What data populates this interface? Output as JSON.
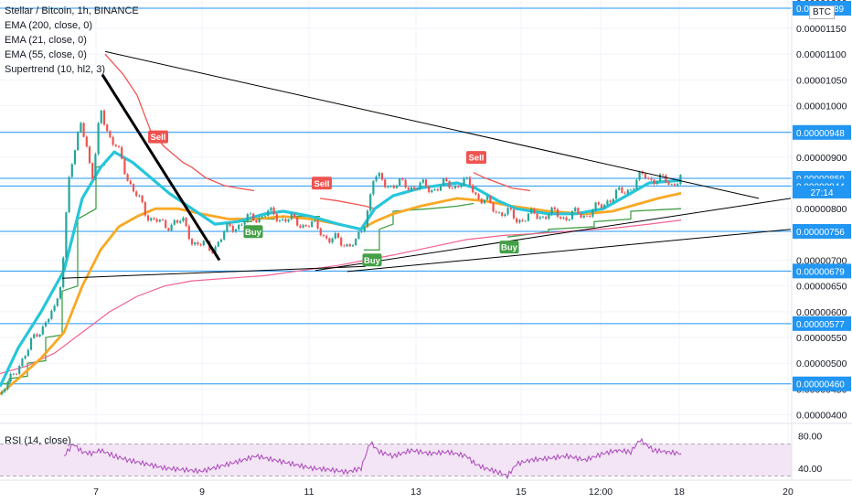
{
  "header": {
    "symbol_line": "Stellar / Bitcoin, 1h, BINANCE",
    "indicators": [
      "EMA (200, close, 0)",
      "EMA (21, close, 0)",
      "EMA (55, close, 0)",
      "Supertrend (10, hl2, 3)"
    ]
  },
  "currency_badge": "BTC",
  "rsi_label": "RSI (14, close)",
  "countdown": "27:14",
  "colors": {
    "bull": "#26a69a",
    "bear": "#ef5350",
    "ema21": "#26c6da",
    "ema55": "#f9a825",
    "ema200": "#f06292",
    "supertrend_up": "#43a047",
    "supertrend_down": "#ef5350",
    "hline": "#2196f3",
    "rsi": "#ab47bc"
  },
  "chart_data": {
    "type": "line",
    "x_ticks": [
      "7",
      "9",
      "11",
      "13",
      "15",
      "12:00",
      "18",
      "20"
    ],
    "y_ticks": [
      "0.00001200",
      "0.00001150",
      "0.00001100",
      "0.00001050",
      "0.00001000",
      "0.00000950",
      "0.00000900",
      "0.00000850",
      "0.00000800",
      "0.00000750",
      "0.00000700",
      "0.00000650",
      "0.00000600",
      "0.00000550",
      "0.00000500",
      "0.00000450",
      "0.00000400"
    ],
    "ylim": [
      3.85e-06,
      1.205e-05
    ],
    "horizontal_levels": [
      "0.00001189",
      "0.00000948",
      "0.00000859",
      "0.00000844",
      "0.00000756",
      "0.00000679",
      "0.00000577",
      "0.00000460"
    ],
    "current_price": "0.00000859",
    "series": [
      {
        "name": "EMA (21, close, 0)",
        "points": [
          [
            0,
            4.55e-06
          ],
          [
            20,
            5.3e-06
          ],
          [
            45,
            6e-06
          ],
          [
            70,
            6.8e-06
          ],
          [
            90,
            8.2e-06
          ],
          [
            110,
            8.8e-06
          ],
          [
            125,
            9.1e-06
          ],
          [
            145,
            8.9e-06
          ],
          [
            165,
            8.6e-06
          ],
          [
            185,
            8.3e-06
          ],
          [
            210,
            8e-06
          ],
          [
            235,
            7.7e-06
          ],
          [
            260,
            7.75e-06
          ],
          [
            290,
            7.9e-06
          ],
          [
            310,
            7.95e-06
          ],
          [
            340,
            7.85e-06
          ],
          [
            370,
            7.7e-06
          ],
          [
            395,
            7.6e-06
          ],
          [
            410,
            8e-06
          ],
          [
            430,
            8.25e-06
          ],
          [
            460,
            8.4e-06
          ],
          [
            500,
            8.5e-06
          ],
          [
            520,
            8.4e-06
          ],
          [
            545,
            8.15e-06
          ],
          [
            565,
            8e-06
          ],
          [
            600,
            7.9e-06
          ],
          [
            630,
            7.9e-06
          ],
          [
            660,
            8e-06
          ],
          [
            690,
            8.3e-06
          ],
          [
            710,
            8.5e-06
          ],
          [
            745,
            8.55e-06
          ]
        ]
      },
      {
        "name": "EMA (55, close, 0)",
        "points": [
          [
            0,
            4.4e-06
          ],
          [
            20,
            4.7e-06
          ],
          [
            45,
            5.1e-06
          ],
          [
            70,
            5.6e-06
          ],
          [
            90,
            6.5e-06
          ],
          [
            110,
            7.2e-06
          ],
          [
            130,
            7.65e-06
          ],
          [
            150,
            7.85e-06
          ],
          [
            170,
            8e-06
          ],
          [
            195,
            8e-06
          ],
          [
            220,
            7.9e-06
          ],
          [
            250,
            7.8e-06
          ],
          [
            280,
            7.8e-06
          ],
          [
            310,
            7.85e-06
          ],
          [
            340,
            7.8e-06
          ],
          [
            370,
            7.7e-06
          ],
          [
            395,
            7.6e-06
          ],
          [
            410,
            7.75e-06
          ],
          [
            430,
            7.9e-06
          ],
          [
            460,
            8.05e-06
          ],
          [
            500,
            8.2e-06
          ],
          [
            530,
            8.15e-06
          ],
          [
            560,
            8.05e-06
          ],
          [
            600,
            7.95e-06
          ],
          [
            640,
            7.9e-06
          ],
          [
            670,
            7.95e-06
          ],
          [
            700,
            8.1e-06
          ],
          [
            720,
            8.2e-06
          ],
          [
            745,
            8.3e-06
          ]
        ]
      },
      {
        "name": "EMA (200, close, 0)",
        "points": [
          [
            0,
            4.8e-06
          ],
          [
            30,
            4.95e-06
          ],
          [
            60,
            5.2e-06
          ],
          [
            90,
            5.6e-06
          ],
          [
            120,
            6e-06
          ],
          [
            150,
            6.3e-06
          ],
          [
            180,
            6.5e-06
          ],
          [
            210,
            6.6e-06
          ],
          [
            250,
            6.65e-06
          ],
          [
            290,
            6.7e-06
          ],
          [
            330,
            6.8e-06
          ],
          [
            370,
            6.9e-06
          ],
          [
            400,
            7e-06
          ],
          [
            430,
            7.1e-06
          ],
          [
            470,
            7.25e-06
          ],
          [
            510,
            7.4e-06
          ],
          [
            550,
            7.48e-06
          ],
          [
            590,
            7.52e-06
          ],
          [
            630,
            7.57e-06
          ],
          [
            670,
            7.62e-06
          ],
          [
            710,
            7.7e-06
          ],
          [
            745,
            7.78e-06
          ]
        ]
      },
      {
        "name": "Supertrend (10, hl2, 3)",
        "segments": [
          {
            "dir": "up",
            "points": [
              [
                0,
                4.6e-06
              ],
              [
                10,
                4.6e-06
              ],
              [
                10,
                4.7e-06
              ],
              [
                30,
                4.75e-06
              ],
              [
                30,
                5e-06
              ],
              [
                50,
                5.05e-06
              ],
              [
                50,
                5.5e-06
              ],
              [
                68,
                5.55e-06
              ],
              [
                68,
                6.4e-06
              ],
              [
                85,
                6.5e-06
              ],
              [
                85,
                7.8e-06
              ],
              [
                105,
                8e-06
              ],
              [
                105,
                8.8e-06
              ],
              [
                115,
                8.85e-06
              ]
            ]
          },
          {
            "dir": "down",
            "points": [
              [
                115,
                1.1e-05
              ],
              [
                135,
                1.06e-05
              ],
              [
                150,
                1.02e-05
              ],
              [
                165,
                9.5e-06
              ],
              [
                180,
                9.2e-06
              ],
              [
                200,
                8.9e-06
              ],
              [
                210,
                8.8e-06
              ],
              [
                225,
                8.6e-06
              ],
              [
                245,
                8.45e-06
              ],
              [
                260,
                8.4e-06
              ],
              [
                278,
                8.35e-06
              ]
            ]
          },
          {
            "dir": "up",
            "points": [
              [
                255,
                7.75e-06
              ],
              [
                275,
                7.75e-06
              ],
              [
                275,
                7.8e-06
              ],
              [
                300,
                7.8e-06
              ],
              [
                300,
                7.85e-06
              ],
              [
                340,
                7.85e-06
              ],
              [
                350,
                7.85e-06
              ]
            ]
          },
          {
            "dir": "down",
            "points": [
              [
                350,
                8.2e-06
              ],
              [
                370,
                8.15e-06
              ],
              [
                385,
                8.1e-06
              ],
              [
                400,
                8.05e-06
              ],
              [
                410,
                8e-06
              ]
            ]
          },
          {
            "dir": "up",
            "points": [
              [
                398,
                7.2e-06
              ],
              [
                415,
                7.2e-06
              ],
              [
                415,
                7.6e-06
              ],
              [
                430,
                7.7e-06
              ],
              [
                430,
                7.95e-06
              ],
              [
                470,
                8e-06
              ],
              [
                500,
                8.05e-06
              ],
              [
                518,
                8.1e-06
              ]
            ]
          },
          {
            "dir": "down",
            "points": [
              [
                518,
                8.7e-06
              ],
              [
                530,
                8.6e-06
              ],
              [
                545,
                8.5e-06
              ],
              [
                560,
                8.4e-06
              ],
              [
                580,
                8.35e-06
              ]
            ]
          },
          {
            "dir": "up",
            "points": [
              [
                555,
                7.45e-06
              ],
              [
                600,
                7.55e-06
              ],
              [
                600,
                7.6e-06
              ],
              [
                650,
                7.65e-06
              ],
              [
                650,
                7.75e-06
              ],
              [
                690,
                7.8e-06
              ],
              [
                690,
                7.95e-06
              ],
              [
                745,
                8e-06
              ]
            ]
          }
        ]
      }
    ],
    "candles_close_path": [
      [
        0,
        4.4e-06
      ],
      [
        10,
        4.6e-06
      ],
      [
        20,
        5e-06
      ],
      [
        30,
        5.2e-06
      ],
      [
        40,
        5.6e-06
      ],
      [
        50,
        5.8e-06
      ],
      [
        60,
        6e-06
      ],
      [
        68,
        6.8e-06
      ],
      [
        75,
        8.6e-06
      ],
      [
        82,
        9e-06
      ],
      [
        88,
        9.8e-06
      ],
      [
        95,
        9.2e-06
      ],
      [
        102,
        8.5e-06
      ],
      [
        110,
        1e-05
      ],
      [
        118,
        9.5e-06
      ],
      [
        125,
        9.2e-06
      ],
      [
        132,
        9e-06
      ],
      [
        140,
        8.6e-06
      ],
      [
        150,
        8.2e-06
      ],
      [
        160,
        7.9e-06
      ],
      [
        170,
        7.8e-06
      ],
      [
        180,
        7.6e-06
      ],
      [
        190,
        7.8e-06
      ],
      [
        200,
        7.7e-06
      ],
      [
        210,
        7.4e-06
      ],
      [
        220,
        7.3e-06
      ],
      [
        230,
        7.2e-06
      ],
      [
        240,
        7.4e-06
      ],
      [
        250,
        7.6e-06
      ],
      [
        260,
        7.7e-06
      ],
      [
        275,
        7.8e-06
      ],
      [
        290,
        7.9e-06
      ],
      [
        305,
        7.85e-06
      ],
      [
        320,
        7.75e-06
      ],
      [
        335,
        7.7e-06
      ],
      [
        350,
        7.6e-06
      ],
      [
        360,
        7.4e-06
      ],
      [
        375,
        7.35e-06
      ],
      [
        390,
        7.3e-06
      ],
      [
        400,
        7.8e-06
      ],
      [
        408,
        8.6e-06
      ],
      [
        420,
        8.5e-06
      ],
      [
        435,
        8.45e-06
      ],
      [
        450,
        8.45e-06
      ],
      [
        470,
        8.4e-06
      ],
      [
        490,
        8.45e-06
      ],
      [
        505,
        8.5e-06
      ],
      [
        515,
        8.45e-06
      ],
      [
        525,
        8.2e-06
      ],
      [
        540,
        8e-06
      ],
      [
        555,
        7.9e-06
      ],
      [
        565,
        7.8e-06
      ],
      [
        580,
        7.85e-06
      ],
      [
        600,
        7.9e-06
      ],
      [
        620,
        7.85e-06
      ],
      [
        640,
        7.9e-06
      ],
      [
        655,
        8e-06
      ],
      [
        665,
        8.2e-06
      ],
      [
        680,
        8.3e-06
      ],
      [
        695,
        8.5e-06
      ],
      [
        705,
        8.65e-06
      ],
      [
        720,
        8.55e-06
      ],
      [
        735,
        8.5e-06
      ],
      [
        745,
        8.6e-06
      ]
    ],
    "signals": [
      {
        "label": "Sell",
        "type": "sell",
        "x": 173,
        "price": 9.2e-06
      },
      {
        "label": "Sell",
        "type": "sell",
        "x": 352,
        "price": 8.3e-06
      },
      {
        "label": "Sell",
        "type": "sell",
        "x": 521,
        "price": 8.8e-06
      },
      {
        "label": "Buy",
        "type": "buy",
        "x": 277,
        "price": 7.75e-06
      },
      {
        "label": "Buy",
        "type": "buy",
        "x": 407,
        "price": 7.2e-06
      },
      {
        "label": "Buy",
        "type": "buy",
        "x": 557,
        "price": 7.45e-06
      }
    ],
    "trendlines": [
      {
        "points": [
          [
            115,
            1.105e-05
          ],
          [
            830,
            8.2e-06
          ]
        ],
        "width": 1
      },
      {
        "points": [
          [
            112,
            1.06e-05
          ],
          [
            240,
            7e-06
          ]
        ],
        "width": 3
      },
      {
        "points": [
          [
            68,
            6.65e-06
          ],
          [
            400,
            6.88e-06
          ]
        ],
        "width": 1
      },
      {
        "points": [
          [
            345,
            6.8e-06
          ],
          [
            865,
            8.2e-06
          ]
        ],
        "width": 1
      },
      {
        "points": [
          [
            380,
            6.78e-06
          ],
          [
            865,
            7.6e-06
          ]
        ],
        "width": 1
      }
    ],
    "rsi": {
      "ylim": [
        25,
        92
      ],
      "y_ticks": [
        "80.00",
        "40.00"
      ],
      "upper": 70,
      "lower": 30,
      "values": [
        [
          70,
          55
        ],
        [
          80,
          70
        ],
        [
          90,
          60
        ],
        [
          100,
          58
        ],
        [
          110,
          62
        ],
        [
          125,
          55
        ],
        [
          140,
          50
        ],
        [
          160,
          45
        ],
        [
          180,
          40
        ],
        [
          200,
          38
        ],
        [
          220,
          36
        ],
        [
          240,
          42
        ],
        [
          260,
          48
        ],
        [
          280,
          55
        ],
        [
          300,
          50
        ],
        [
          320,
          45
        ],
        [
          340,
          40
        ],
        [
          360,
          38
        ],
        [
          380,
          35
        ],
        [
          395,
          40
        ],
        [
          405,
          72
        ],
        [
          415,
          60
        ],
        [
          430,
          55
        ],
        [
          450,
          62
        ],
        [
          470,
          58
        ],
        [
          490,
          60
        ],
        [
          510,
          55
        ],
        [
          520,
          45
        ],
        [
          530,
          40
        ],
        [
          545,
          35
        ],
        [
          555,
          30
        ],
        [
          565,
          45
        ],
        [
          580,
          50
        ],
        [
          600,
          52
        ],
        [
          620,
          55
        ],
        [
          640,
          50
        ],
        [
          660,
          58
        ],
        [
          675,
          62
        ],
        [
          690,
          60
        ],
        [
          700,
          75
        ],
        [
          715,
          62
        ],
        [
          730,
          60
        ],
        [
          745,
          58
        ]
      ]
    }
  }
}
